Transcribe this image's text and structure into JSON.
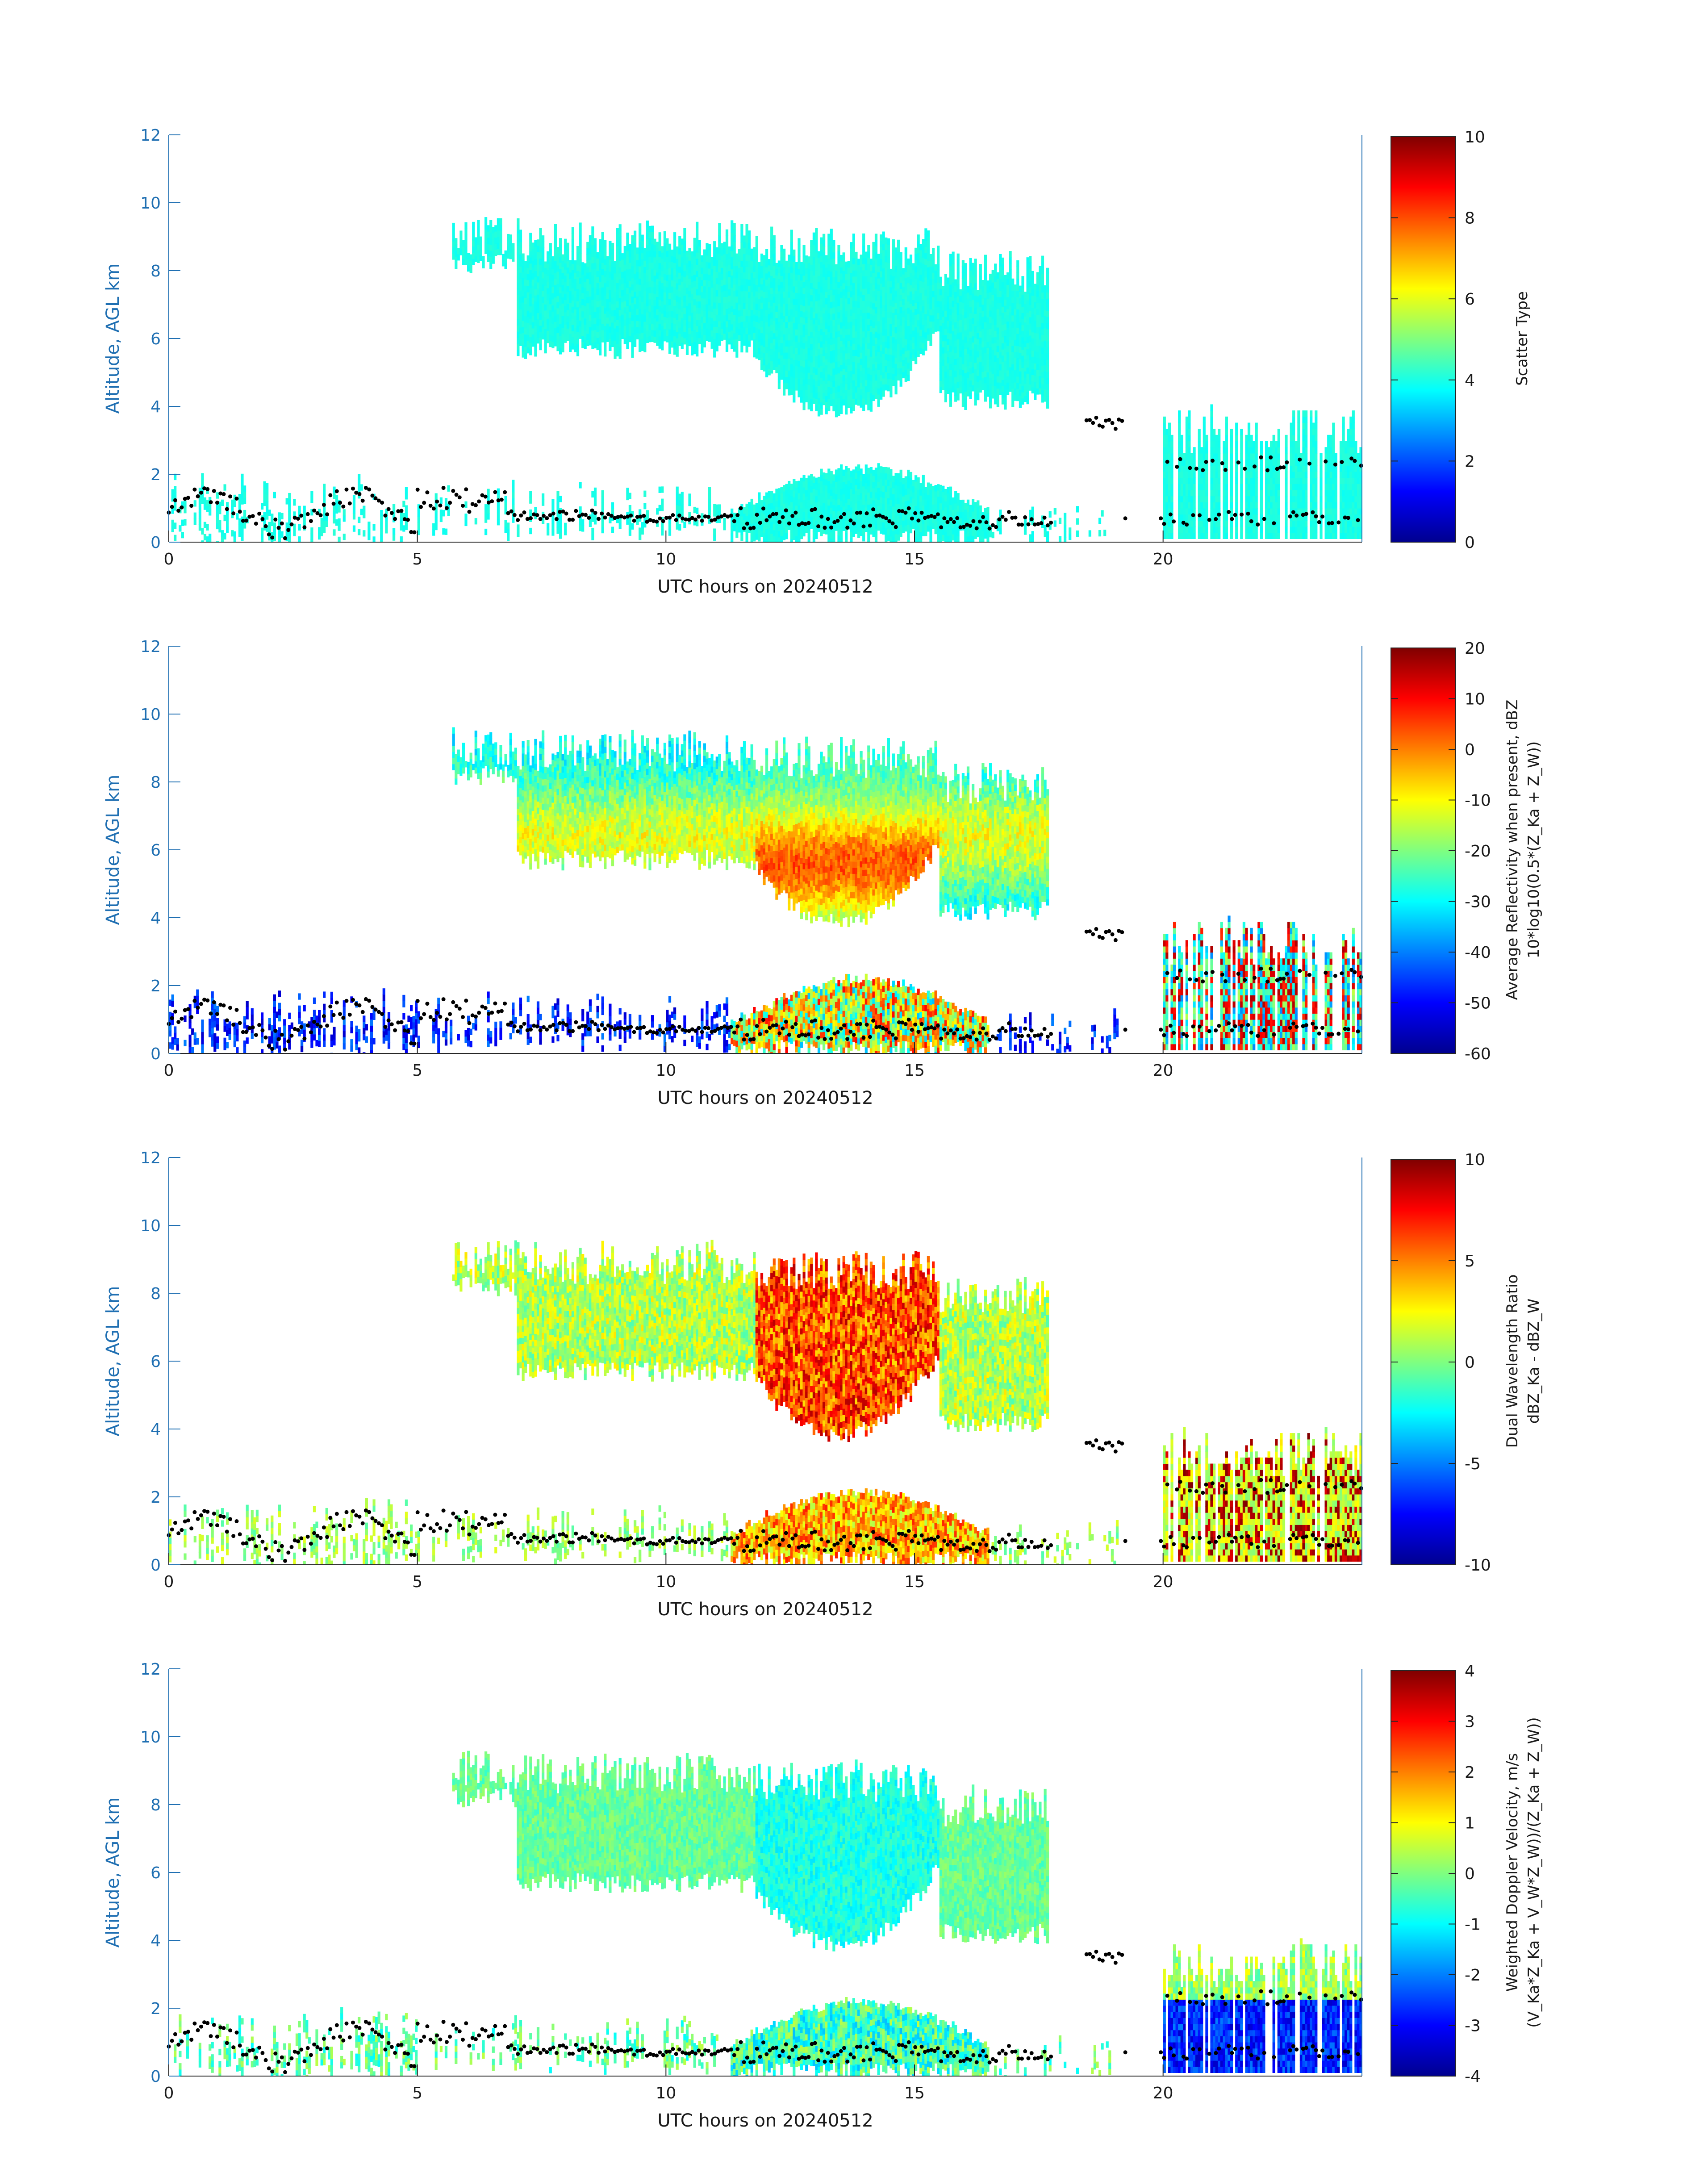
{
  "chart_data": [
    {
      "type": "heatmap",
      "xlabel": "UTC hours on 20240512",
      "ylabel": "Altitude, AGL km",
      "xlim": [
        0,
        24
      ],
      "ylim": [
        0,
        12
      ],
      "xticks": [
        "0",
        "5",
        "10",
        "15",
        "20"
      ],
      "yticks": [
        "0",
        "2",
        "4",
        "6",
        "8",
        "10",
        "12"
      ],
      "colorbar": {
        "label": "Scatter Type",
        "label2": "",
        "range": [
          0,
          10
        ],
        "ticks": [
          "0",
          "2",
          "4",
          "6",
          "8",
          "10"
        ],
        "colormap": "jet"
      },
      "field": "scatter",
      "overlay": "cloud base / top markers (black dots)"
    },
    {
      "type": "heatmap",
      "xlabel": "UTC hours on 20240512",
      "ylabel": "Altitude, AGL km",
      "xlim": [
        0,
        24
      ],
      "ylim": [
        0,
        12
      ],
      "xticks": [
        "0",
        "5",
        "10",
        "15",
        "20"
      ],
      "yticks": [
        "0",
        "2",
        "4",
        "6",
        "8",
        "10",
        "12"
      ],
      "colorbar": {
        "label": "Average Reflectivity when present, dBZ",
        "label2": "10*log10(0.5*(Z_Ka + Z_W))",
        "range": [
          -60,
          20
        ],
        "ticks": [
          "-60",
          "-50",
          "-40",
          "-30",
          "-20",
          "-10",
          "0",
          "10",
          "20"
        ],
        "colormap": "jet"
      },
      "field": "reflectivity"
    },
    {
      "type": "heatmap",
      "xlabel": "UTC hours on 20240512",
      "ylabel": "Altitude, AGL km",
      "xlim": [
        0,
        24
      ],
      "ylim": [
        0,
        12
      ],
      "xticks": [
        "0",
        "5",
        "10",
        "15",
        "20"
      ],
      "yticks": [
        "0",
        "2",
        "4",
        "6",
        "8",
        "10",
        "12"
      ],
      "colorbar": {
        "label": "Dual Wavelength Ratio",
        "label2": "dBZ_Ka - dBZ_W",
        "range": [
          -10,
          10
        ],
        "ticks": [
          "-10",
          "-5",
          "0",
          "5",
          "10"
        ],
        "colormap": "jet"
      },
      "field": "dwr"
    },
    {
      "type": "heatmap",
      "xlabel": "UTC hours on 20240512",
      "ylabel": "Altitude, AGL km",
      "xlim": [
        0,
        24
      ],
      "ylim": [
        0,
        12
      ],
      "xticks": [
        "0",
        "5",
        "10",
        "15",
        "20"
      ],
      "yticks": [
        "0",
        "2",
        "4",
        "6",
        "8",
        "10",
        "12"
      ],
      "colorbar": {
        "label": "Weighted Doppler Velocity, m/s",
        "label2": "(V_Ka*Z_Ka + V_W*Z_W))/(Z_Ka + Z_W))",
        "range": [
          -4,
          4
        ],
        "ticks": [
          "-4",
          "-3",
          "-2",
          "-1",
          "0",
          "1",
          "2",
          "3",
          "4"
        ],
        "colormap": "jet"
      },
      "field": "velocity"
    }
  ]
}
